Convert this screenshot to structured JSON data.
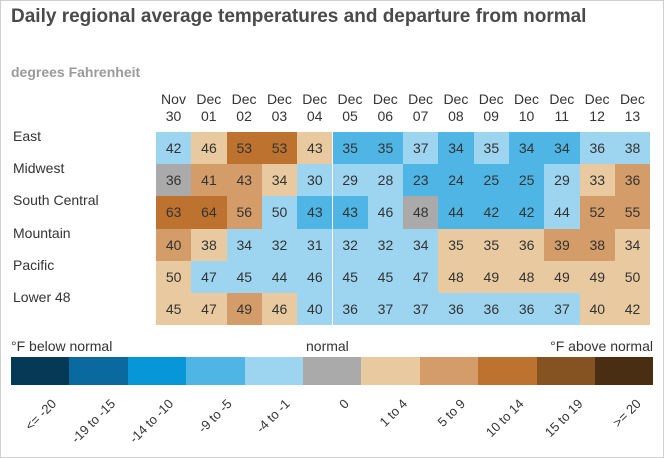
{
  "chart_data": {
    "type": "heatmap",
    "title": "Daily regional average temperatures and departure from normal",
    "subtitle": "degrees Fahrenheit",
    "columns": [
      [
        "Nov",
        "30"
      ],
      [
        "Dec",
        "01"
      ],
      [
        "Dec",
        "02"
      ],
      [
        "Dec",
        "03"
      ],
      [
        "Dec",
        "04"
      ],
      [
        "Dec",
        "05"
      ],
      [
        "Dec",
        "06"
      ],
      [
        "Dec",
        "07"
      ],
      [
        "Dec",
        "08"
      ],
      [
        "Dec",
        "09"
      ],
      [
        "Dec",
        "10"
      ],
      [
        "Dec",
        "11"
      ],
      [
        "Dec",
        "12"
      ],
      [
        "Dec",
        "13"
      ]
    ],
    "rows": [
      "East",
      "Midwest",
      "South Central",
      "Mountain",
      "Pacific",
      "Lower 48"
    ],
    "values": [
      [
        42,
        46,
        53,
        53,
        43,
        35,
        35,
        37,
        34,
        35,
        34,
        34,
        36,
        38
      ],
      [
        36,
        41,
        43,
        34,
        30,
        29,
        28,
        23,
        24,
        25,
        25,
        29,
        33,
        36
      ],
      [
        63,
        64,
        56,
        50,
        43,
        43,
        46,
        48,
        44,
        42,
        42,
        44,
        52,
        55
      ],
      [
        40,
        38,
        34,
        32,
        31,
        32,
        32,
        34,
        35,
        35,
        36,
        39,
        38,
        34
      ],
      [
        50,
        47,
        45,
        44,
        46,
        45,
        45,
        47,
        48,
        49,
        48,
        49,
        49,
        50
      ],
      [
        45,
        47,
        49,
        46,
        40,
        36,
        37,
        37,
        36,
        36,
        36,
        37,
        40,
        42
      ]
    ],
    "departure_class": [
      [
        4,
        6,
        8,
        8,
        6,
        3,
        3,
        4,
        3,
        4,
        3,
        3,
        4,
        4
      ],
      [
        5,
        7,
        7,
        6,
        4,
        4,
        4,
        3,
        3,
        3,
        3,
        4,
        6,
        7
      ],
      [
        8,
        8,
        7,
        4,
        3,
        3,
        4,
        5,
        3,
        3,
        3,
        4,
        7,
        7
      ],
      [
        7,
        6,
        4,
        4,
        4,
        4,
        4,
        4,
        6,
        6,
        6,
        7,
        7,
        6
      ],
      [
        6,
        4,
        4,
        4,
        4,
        4,
        4,
        4,
        6,
        6,
        6,
        6,
        6,
        6
      ],
      [
        6,
        6,
        7,
        6,
        4,
        4,
        4,
        4,
        4,
        4,
        4,
        4,
        6,
        6
      ]
    ],
    "legend": {
      "below_label": "°F below normal",
      "normal_label": "normal",
      "above_label": "°F above normal",
      "classes": [
        "<= -20",
        "-19 to -15",
        "-14 to -10",
        "-9 to -5",
        "-4 to -1",
        "0",
        "1 to 4",
        "5 to 9",
        "10 to 14",
        "15 to 19",
        ">= 20"
      ],
      "colors": [
        "#053a57",
        "#0a6a9f",
        "#0797d9",
        "#4fb5e5",
        "#9dd4f0",
        "#aaaaaa",
        "#e8c9a0",
        "#d49c68",
        "#be7230",
        "#855221",
        "#4a2e14"
      ]
    }
  }
}
